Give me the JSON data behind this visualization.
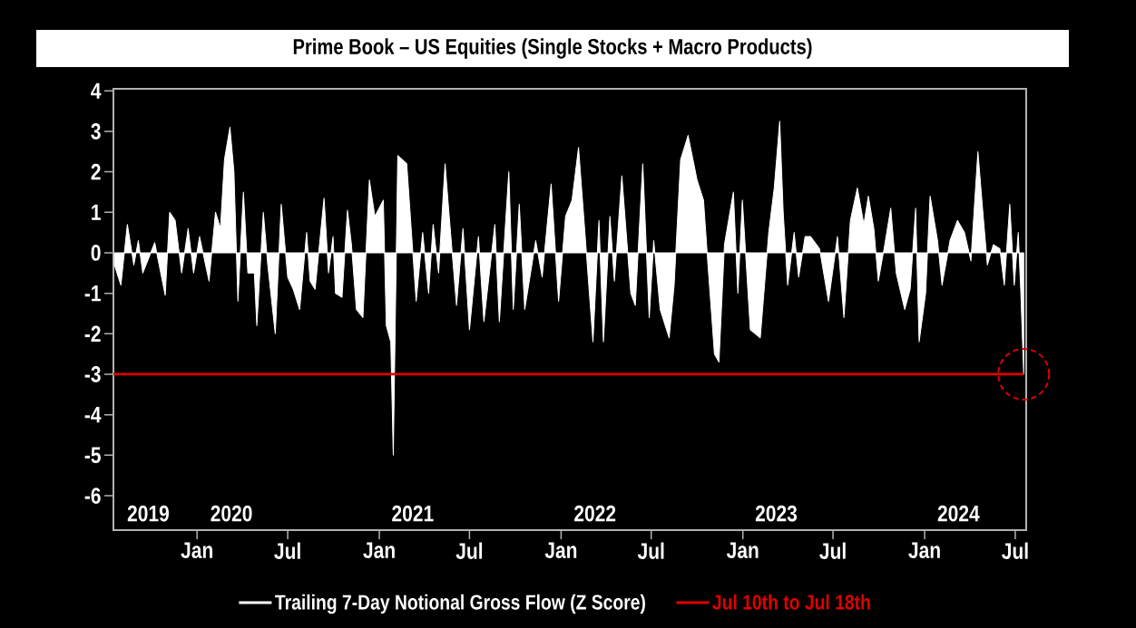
{
  "chart_data": {
    "type": "area",
    "title": "Prime Book – US Equities (Single Stocks + Macro Products)",
    "xlim": [
      "2019-07-17",
      "2024-07-23"
    ],
    "ylim": [
      -6.85,
      4.05
    ],
    "xticks": [
      {
        "value": "2020-01-01",
        "label": "Jan"
      },
      {
        "value": "2020-07-01",
        "label": "Jul"
      },
      {
        "value": "2021-01-01",
        "label": "Jan"
      },
      {
        "value": "2021-07-01",
        "label": "Jul"
      },
      {
        "value": "2022-01-01",
        "label": "Jan"
      },
      {
        "value": "2022-07-01",
        "label": "Jul"
      },
      {
        "value": "2023-01-01",
        "label": "Jan"
      },
      {
        "value": "2023-07-01",
        "label": "Jul"
      },
      {
        "value": "2024-01-01",
        "label": "Jan"
      },
      {
        "value": "2024-07-01",
        "label": "Jul"
      }
    ],
    "x2lim": [
      "2019-07-17",
      "2024-07-23"
    ],
    "x2ticks": [
      {
        "value": "2019-09-25",
        "label": "2019"
      },
      {
        "value": "2020-03-10",
        "label": "2020"
      },
      {
        "value": "2021-03-09",
        "label": "2021"
      },
      {
        "value": "2022-03-10",
        "label": "2022"
      },
      {
        "value": "2023-03-09",
        "label": "2023"
      },
      {
        "value": "2024-03-09",
        "label": "2024"
      }
    ],
    "yticks": [
      4,
      3,
      2,
      1,
      0,
      -1,
      -2,
      -3,
      -4,
      -5,
      -6
    ],
    "legend": "bottom",
    "series": [
      {
        "name": "Trailing 7-Day Notional Gross Flow (Z Score)",
        "color": "#ffffff",
        "x": [
          "2019-07-19",
          "2019-08-01",
          "2019-08-14",
          "2019-08-27",
          "2019-09-05",
          "2019-09-14",
          "2019-10-08",
          "2019-10-29",
          "2019-11-07",
          "2019-11-18",
          "2019-12-01",
          "2019-12-14",
          "2019-12-25",
          "2020-01-06",
          "2020-01-25",
          "2020-02-07",
          "2020-02-17",
          "2020-02-25",
          "2020-03-07",
          "2020-03-15",
          "2020-03-23",
          "2020-04-03",
          "2020-04-12",
          "2020-04-25",
          "2020-04-30",
          "2020-05-13",
          "2020-05-22",
          "2020-06-06",
          "2020-06-18",
          "2020-07-01",
          "2020-07-12",
          "2020-07-25",
          "2020-08-08",
          "2020-08-15",
          "2020-08-25",
          "2020-09-12",
          "2020-09-21",
          "2020-09-30",
          "2020-10-05",
          "2020-10-18",
          "2020-10-29",
          "2020-11-06",
          "2020-11-16",
          "2020-11-29",
          "2020-12-12",
          "2020-12-23",
          "2021-01-09",
          "2021-01-15",
          "2021-01-24",
          "2021-01-29",
          "2021-02-07",
          "2021-02-25",
          "2021-03-16",
          "2021-03-29",
          "2021-04-10",
          "2021-04-19",
          "2021-04-30",
          "2021-05-13",
          "2021-05-22",
          "2021-06-05",
          "2021-06-18",
          "2021-07-01",
          "2021-07-19",
          "2021-07-30",
          "2021-08-21",
          "2021-08-30",
          "2021-09-18",
          "2021-09-27",
          "2021-10-09",
          "2021-10-20",
          "2021-11-11",
          "2021-11-24",
          "2021-12-12",
          "2021-12-27",
          "2022-01-10",
          "2022-01-23",
          "2022-02-05",
          "2022-02-16",
          "2022-03-06",
          "2022-03-18",
          "2022-03-27",
          "2022-04-09",
          "2022-04-18",
          "2022-05-03",
          "2022-05-21",
          "2022-05-30",
          "2022-06-14",
          "2022-06-27",
          "2022-07-06",
          "2022-07-19",
          "2022-08-06",
          "2022-08-16",
          "2022-08-29",
          "2022-09-13",
          "2022-10-01",
          "2022-10-14",
          "2022-10-23",
          "2022-11-05",
          "2022-11-14",
          "2022-11-25",
          "2022-12-13",
          "2022-12-22",
          "2022-12-31",
          "2023-01-16",
          "2023-02-05",
          "2023-02-22",
          "2023-03-05",
          "2023-03-16",
          "2023-03-23",
          "2023-04-01",
          "2023-04-14",
          "2023-04-23",
          "2023-05-06",
          "2023-05-17",
          "2023-06-04",
          "2023-06-22",
          "2023-07-10",
          "2023-07-23",
          "2023-08-05",
          "2023-08-19",
          "2023-09-01",
          "2023-09-10",
          "2023-09-21",
          "2023-09-30",
          "2023-10-13",
          "2023-10-25",
          "2023-11-05",
          "2023-11-22",
          "2023-12-03",
          "2023-12-14",
          "2023-12-21",
          "2024-01-03",
          "2024-01-12",
          "2024-01-27",
          "2024-02-05",
          "2024-02-21",
          "2024-03-07",
          "2024-03-21",
          "2024-04-03",
          "2024-04-17",
          "2024-04-27",
          "2024-05-06",
          "2024-05-18",
          "2024-05-31",
          "2024-06-09",
          "2024-06-20",
          "2024-06-29",
          "2024-07-07",
          "2024-07-12",
          "2024-07-18"
        ],
        "values": [
          -0.3,
          -0.8,
          0.7,
          -0.3,
          0.3,
          -0.5,
          0.25,
          -1.05,
          1.0,
          0.8,
          -0.5,
          0.6,
          -0.5,
          0.4,
          -0.7,
          1.0,
          0.6,
          2.3,
          3.1,
          2.0,
          -1.2,
          1.5,
          -0.5,
          -0.5,
          -1.8,
          1.0,
          -0.3,
          -2.0,
          1.2,
          -0.6,
          -0.9,
          -1.4,
          0.5,
          -0.7,
          -0.9,
          1.35,
          -0.5,
          0.4,
          -1.0,
          -1.1,
          1.05,
          0.2,
          -1.4,
          -1.6,
          1.8,
          0.9,
          1.3,
          -1.8,
          -2.2,
          -5.0,
          2.4,
          2.2,
          -1.2,
          0.5,
          -1.0,
          0.7,
          -0.5,
          2.2,
          0.8,
          -1.3,
          0.6,
          -1.9,
          0.4,
          -1.7,
          0.7,
          -1.7,
          2.0,
          -1.4,
          1.2,
          -1.4,
          0.3,
          -0.6,
          1.7,
          -1.2,
          0.9,
          1.3,
          2.6,
          0.8,
          -2.2,
          0.8,
          -2.2,
          0.9,
          -0.7,
          1.9,
          -1.0,
          -1.3,
          2.2,
          -1.6,
          0.3,
          -1.4,
          -2.1,
          -0.8,
          2.3,
          2.9,
          1.8,
          1.3,
          -0.3,
          -2.5,
          -2.7,
          0.2,
          1.5,
          -1.0,
          1.3,
          -1.9,
          -2.1,
          0.5,
          1.6,
          3.25,
          1.0,
          -0.8,
          0.5,
          -0.6,
          0.4,
          0.4,
          0.1,
          -1.2,
          0.4,
          -1.6,
          0.8,
          1.6,
          0.7,
          1.4,
          0.6,
          -0.7,
          0.2,
          1.1,
          -0.5,
          -1.4,
          -0.9,
          1.1,
          -2.2,
          -1.0,
          1.4,
          0.3,
          -0.8,
          0.3,
          0.8,
          0.5,
          -0.2,
          2.5,
          1.0,
          -0.3,
          0.2,
          0.1,
          -0.8,
          1.2,
          -0.8,
          0.5,
          -0.9,
          -3.0
        ]
      },
      {
        "name": "Jul 10th to Jul 18th",
        "type": "line",
        "color": "#e00000",
        "x": [
          "2019-07-17",
          "2024-07-18"
        ],
        "values": [
          -3,
          -3
        ]
      }
    ]
  }
}
